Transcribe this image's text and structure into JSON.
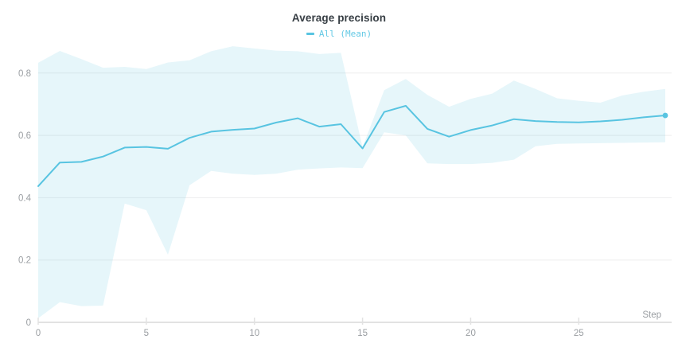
{
  "panel": {
    "title": "Average precision"
  },
  "legend": {
    "items": [
      {
        "label": "All (Mean)"
      }
    ]
  },
  "colors": {
    "line": "#58c4e1",
    "band": "rgba(88,193,224,0.15)",
    "legend_text": "#63c9e5",
    "title_text": "#373e44",
    "axis_text": "#9a9ea2",
    "axis_line": "#e2e2e2",
    "grid_line": "#ededee"
  },
  "chart_data": {
    "type": "line",
    "title": "Average precision",
    "xlabel": "Step",
    "ylabel": "",
    "xlim": [
      0,
      29
    ],
    "ylim": [
      0,
      0.894
    ],
    "x_ticks": [
      0,
      5,
      10,
      15,
      20,
      25
    ],
    "y_ticks": [
      0,
      0.2,
      0.4,
      0.6,
      0.8
    ],
    "grid": "horizontal",
    "legend_position": "top-center",
    "end_marker": true,
    "series": [
      {
        "name": "All (Mean)",
        "x": [
          0,
          1,
          2,
          3,
          4,
          5,
          6,
          7,
          8,
          9,
          10,
          11,
          12,
          13,
          14,
          15,
          16,
          17,
          18,
          19,
          20,
          21,
          22,
          23,
          24,
          25,
          26,
          27,
          28,
          29
        ],
        "y": [
          0.437,
          0.513,
          0.515,
          0.532,
          0.561,
          0.563,
          0.557,
          0.592,
          0.612,
          0.618,
          0.622,
          0.641,
          0.655,
          0.628,
          0.636,
          0.558,
          0.675,
          0.695,
          0.621,
          0.596,
          0.617,
          0.632,
          0.652,
          0.646,
          0.643,
          0.642,
          0.645,
          0.65,
          0.658,
          0.664
        ],
        "band_upper": [
          0.833,
          0.871,
          0.845,
          0.817,
          0.82,
          0.813,
          0.834,
          0.841,
          0.87,
          0.886,
          0.879,
          0.872,
          0.87,
          0.861,
          0.865,
          0.562,
          0.745,
          0.781,
          0.73,
          0.692,
          0.717,
          0.734,
          0.776,
          0.749,
          0.719,
          0.711,
          0.705,
          0.728,
          0.74,
          0.749
        ],
        "band_lower": [
          0.013,
          0.065,
          0.052,
          0.054,
          0.381,
          0.36,
          0.217,
          0.44,
          0.486,
          0.477,
          0.473,
          0.477,
          0.49,
          0.494,
          0.497,
          0.495,
          0.61,
          0.6,
          0.51,
          0.508,
          0.508,
          0.512,
          0.522,
          0.565,
          0.573,
          0.574,
          0.575,
          0.576,
          0.577,
          0.578
        ]
      }
    ]
  }
}
